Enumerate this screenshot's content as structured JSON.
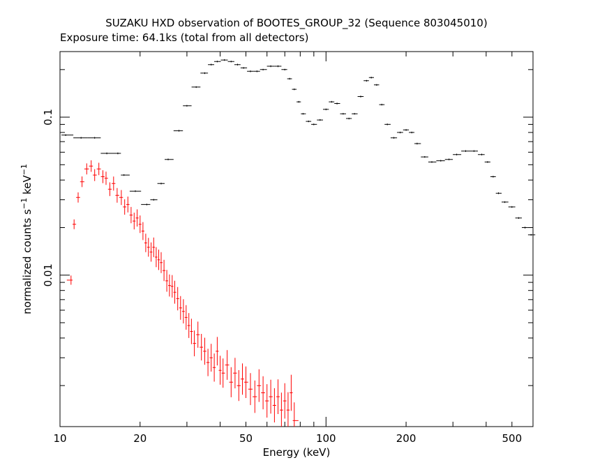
{
  "chart_data": {
    "type": "scatter",
    "title": "SUZAKU HXD observation of BOOTES_GROUP_32 (Sequence 803045010)",
    "subtitle": "Exposure time: 64.1ks (total from all detectors)",
    "xlabel": "Energy (keV)",
    "ylabel": "normalized counts s",
    "ylabel_sup1": "−1",
    "ylabel_mid": " keV",
    "ylabel_sup2": "−1",
    "x_scale": "log",
    "y_scale": "log",
    "xlim": [
      10,
      600
    ],
    "ylim": [
      0.0011,
      0.26
    ],
    "grid": false,
    "x_tick_labels": [
      {
        "value": 10,
        "label": "10"
      },
      {
        "value": 20,
        "label": "20"
      },
      {
        "value": 50,
        "label": "50"
      },
      {
        "value": 100,
        "label": "100"
      },
      {
        "value": 200,
        "label": "200"
      },
      {
        "value": 500,
        "label": "500"
      }
    ],
    "y_tick_labels": [
      {
        "value": 0.1,
        "label": "0.1"
      },
      {
        "value": 0.01,
        "label": "0.01"
      }
    ],
    "series": [
      {
        "color": "#000000",
        "marker": "crosshair-with-errorbars",
        "points": [
          [
            10.5,
            0.077
          ],
          [
            12.0,
            0.074
          ],
          [
            13.5,
            0.074
          ],
          [
            15.0,
            0.059
          ],
          [
            16.5,
            0.059
          ],
          [
            17.4,
            0.043
          ],
          [
            19.2,
            0.034
          ],
          [
            21.2,
            0.028
          ],
          [
            22.5,
            0.03
          ],
          [
            24.0,
            0.038
          ],
          [
            25.5,
            0.054
          ],
          [
            28.0,
            0.082
          ],
          [
            30.0,
            0.118
          ],
          [
            32.5,
            0.155
          ],
          [
            35.0,
            0.19
          ],
          [
            37.0,
            0.215
          ],
          [
            39.0,
            0.225
          ],
          [
            41.5,
            0.23
          ],
          [
            44.0,
            0.225
          ],
          [
            46.5,
            0.215
          ],
          [
            49.0,
            0.205
          ],
          [
            52.0,
            0.195
          ],
          [
            55.0,
            0.195
          ],
          [
            58.0,
            0.2
          ],
          [
            62.0,
            0.21
          ],
          [
            66.0,
            0.21
          ],
          [
            70.0,
            0.2
          ],
          [
            73.0,
            0.175
          ],
          [
            76.0,
            0.15
          ],
          [
            79.0,
            0.125
          ],
          [
            82.0,
            0.105
          ],
          [
            86.0,
            0.094
          ],
          [
            90.0,
            0.09
          ],
          [
            95.0,
            0.096
          ],
          [
            100.0,
            0.112
          ],
          [
            105.0,
            0.125
          ],
          [
            110.0,
            0.122
          ],
          [
            116.0,
            0.105
          ],
          [
            122.0,
            0.098
          ],
          [
            128.0,
            0.105
          ],
          [
            135.0,
            0.135
          ],
          [
            142.0,
            0.17
          ],
          [
            148.0,
            0.178
          ],
          [
            155.0,
            0.16
          ],
          [
            162.0,
            0.12
          ],
          [
            170.0,
            0.09
          ],
          [
            180.0,
            0.074
          ],
          [
            190.0,
            0.08
          ],
          [
            200.0,
            0.083
          ],
          [
            210.0,
            0.08
          ],
          [
            220.0,
            0.068
          ],
          [
            235.0,
            0.056
          ],
          [
            250.0,
            0.052
          ],
          [
            270.0,
            0.053
          ],
          [
            290.0,
            0.054
          ],
          [
            310.0,
            0.058
          ],
          [
            335.0,
            0.061
          ],
          [
            360.0,
            0.061
          ],
          [
            385.0,
            0.058
          ],
          [
            405.0,
            0.052
          ],
          [
            425.0,
            0.042
          ],
          [
            445.0,
            0.033
          ],
          [
            470.0,
            0.029
          ],
          [
            500.0,
            0.027
          ],
          [
            530.0,
            0.023
          ],
          [
            560.0,
            0.02
          ],
          [
            590.0,
            0.018
          ]
        ]
      },
      {
        "color": "#ff0000",
        "marker": "crosshair-with-errorbars",
        "points": [
          [
            11.0,
            0.0093
          ],
          [
            11.3,
            0.021
          ],
          [
            11.7,
            0.031
          ],
          [
            12.1,
            0.039
          ],
          [
            12.6,
            0.047
          ],
          [
            13.1,
            0.049
          ],
          [
            13.5,
            0.043
          ],
          [
            14.0,
            0.047
          ],
          [
            14.5,
            0.042
          ],
          [
            14.9,
            0.041
          ],
          [
            15.4,
            0.035
          ],
          [
            15.9,
            0.038
          ],
          [
            16.4,
            0.032
          ],
          [
            17.0,
            0.031
          ],
          [
            17.5,
            0.027
          ],
          [
            18.0,
            0.028
          ],
          [
            18.5,
            0.024
          ],
          [
            19.0,
            0.022
          ],
          [
            19.5,
            0.023
          ],
          [
            20.0,
            0.021
          ],
          [
            20.5,
            0.019
          ],
          [
            21.0,
            0.016
          ],
          [
            21.5,
            0.015
          ],
          [
            22.0,
            0.014
          ],
          [
            22.5,
            0.015
          ],
          [
            23.0,
            0.013
          ],
          [
            23.5,
            0.0125
          ],
          [
            24.0,
            0.012
          ],
          [
            24.6,
            0.0107
          ],
          [
            25.2,
            0.0092
          ],
          [
            25.8,
            0.0086
          ],
          [
            26.4,
            0.0085
          ],
          [
            27.0,
            0.0078
          ],
          [
            27.7,
            0.0071
          ],
          [
            28.4,
            0.0062
          ],
          [
            29.1,
            0.0059
          ],
          [
            29.8,
            0.0054
          ],
          [
            30.5,
            0.0048
          ],
          [
            31.2,
            0.0044
          ],
          [
            32.0,
            0.0037
          ],
          [
            33.0,
            0.0042
          ],
          [
            34.0,
            0.0035
          ],
          [
            35.0,
            0.0033
          ],
          [
            36.0,
            0.0028
          ],
          [
            37.0,
            0.003
          ],
          [
            38.0,
            0.0026
          ],
          [
            39.0,
            0.0033
          ],
          [
            40.0,
            0.0025
          ],
          [
            41.0,
            0.0024
          ],
          [
            42.5,
            0.0027
          ],
          [
            44.0,
            0.0021
          ],
          [
            45.5,
            0.0024
          ],
          [
            47.0,
            0.002
          ],
          [
            48.5,
            0.0022
          ],
          [
            50.0,
            0.0021
          ],
          [
            52.0,
            0.0019
          ],
          [
            54.0,
            0.0017
          ],
          [
            56.0,
            0.002
          ],
          [
            58.0,
            0.0018
          ],
          [
            60.0,
            0.0016
          ],
          [
            62.0,
            0.0017
          ],
          [
            64.0,
            0.0015
          ],
          [
            66.0,
            0.0017
          ],
          [
            68.0,
            0.0014
          ],
          [
            70.0,
            0.0016
          ],
          [
            72.0,
            0.0014
          ],
          [
            74.0,
            0.0018
          ],
          [
            76.0,
            0.0012
          ]
        ]
      }
    ]
  }
}
